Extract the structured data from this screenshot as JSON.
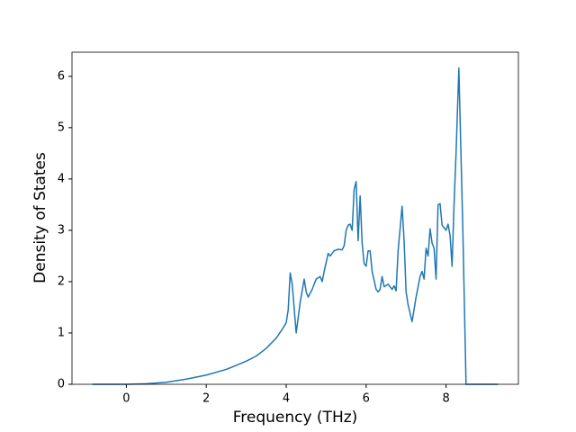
{
  "chart_data": {
    "type": "line",
    "xlabel": "Frequency (THz)",
    "ylabel": "Density of States",
    "x": [
      -0.85,
      0,
      0.5,
      1,
      1.5,
      2,
      2.5,
      3,
      3.25,
      3.5,
      3.75,
      3.9,
      4.0,
      4.05,
      4.1,
      4.15,
      4.25,
      4.35,
      4.45,
      4.5,
      4.55,
      4.65,
      4.75,
      4.85,
      4.9,
      4.95,
      5.05,
      5.1,
      5.2,
      5.3,
      5.4,
      5.45,
      5.5,
      5.55,
      5.6,
      5.65,
      5.7,
      5.75,
      5.8,
      5.85,
      5.9,
      5.95,
      6.0,
      6.05,
      6.1,
      6.15,
      6.25,
      6.3,
      6.35,
      6.4,
      6.45,
      6.55,
      6.65,
      6.7,
      6.75,
      6.8,
      6.9,
      6.95,
      7.0,
      7.05,
      7.15,
      7.25,
      7.35,
      7.4,
      7.45,
      7.5,
      7.55,
      7.6,
      7.65,
      7.7,
      7.75,
      7.8,
      7.85,
      7.9,
      8.0,
      8.05,
      8.1,
      8.15,
      8.2,
      8.25,
      8.32,
      8.42,
      8.5,
      9.3
    ],
    "values": [
      0,
      0,
      0.01,
      0.04,
      0.1,
      0.18,
      0.29,
      0.45,
      0.55,
      0.7,
      0.9,
      1.07,
      1.2,
      1.45,
      2.17,
      1.95,
      1.0,
      1.6,
      2.05,
      1.8,
      1.7,
      1.85,
      2.05,
      2.1,
      2.0,
      2.2,
      2.55,
      2.5,
      2.6,
      2.63,
      2.62,
      2.7,
      3.0,
      3.1,
      3.12,
      3.0,
      3.8,
      3.95,
      2.8,
      3.67,
      2.75,
      2.35,
      2.3,
      2.6,
      2.6,
      2.2,
      1.85,
      1.8,
      1.85,
      2.1,
      1.9,
      1.95,
      1.85,
      1.92,
      1.82,
      2.6,
      3.47,
      2.8,
      1.8,
      1.55,
      1.22,
      1.7,
      2.1,
      2.2,
      2.05,
      2.65,
      2.5,
      3.03,
      2.75,
      2.65,
      2.05,
      3.5,
      3.52,
      3.1,
      3.0,
      3.12,
      2.9,
      2.3,
      3.5,
      4.5,
      6.16,
      3.0,
      0,
      0
    ],
    "color": "#1f77b4",
    "xlim": [
      -1.36,
      9.81
    ],
    "xticks": [
      0,
      2,
      4,
      6,
      8
    ],
    "ylim": [
      0,
      6.47
    ],
    "yticks": [
      0,
      1,
      2,
      3,
      4,
      5,
      6
    ]
  }
}
